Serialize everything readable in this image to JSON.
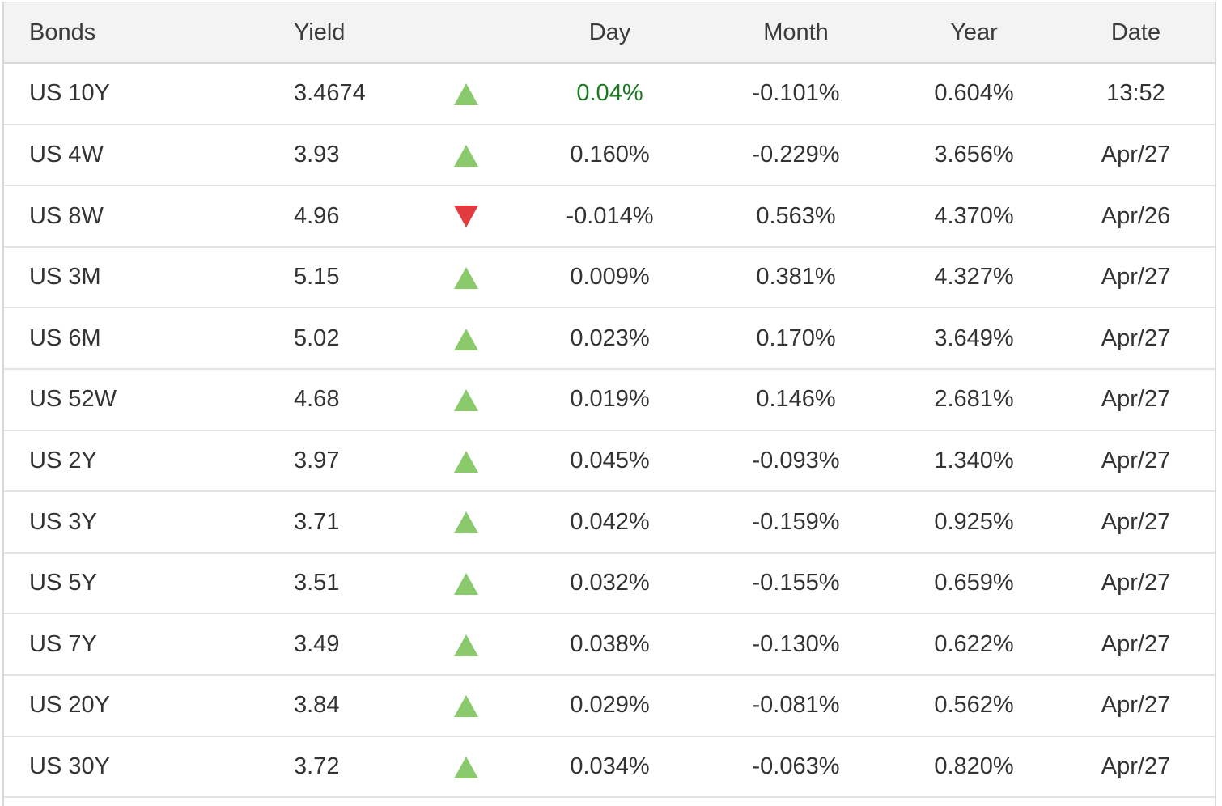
{
  "table": {
    "header": {
      "bonds": "Bonds",
      "yield": "Yield",
      "arrow": "",
      "day": "Day",
      "month": "Month",
      "year": "Year",
      "date": "Date"
    },
    "rows": [
      {
        "bond": "US 10Y",
        "yield": "3.4674",
        "direction": "up",
        "day": "0.04%",
        "day_green": true,
        "month": "-0.101%",
        "year": "0.604%",
        "date": "13:52"
      },
      {
        "bond": "US 4W",
        "yield": "3.93",
        "direction": "up",
        "day": "0.160%",
        "day_green": false,
        "month": "-0.229%",
        "year": "3.656%",
        "date": "Apr/27"
      },
      {
        "bond": "US 8W",
        "yield": "4.96",
        "direction": "down",
        "day": "-0.014%",
        "day_green": false,
        "month": "0.563%",
        "year": "4.370%",
        "date": "Apr/26"
      },
      {
        "bond": "US 3M",
        "yield": "5.15",
        "direction": "up",
        "day": "0.009%",
        "day_green": false,
        "month": "0.381%",
        "year": "4.327%",
        "date": "Apr/27"
      },
      {
        "bond": "US 6M",
        "yield": "5.02",
        "direction": "up",
        "day": "0.023%",
        "day_green": false,
        "month": "0.170%",
        "year": "3.649%",
        "date": "Apr/27"
      },
      {
        "bond": "US 52W",
        "yield": "4.68",
        "direction": "up",
        "day": "0.019%",
        "day_green": false,
        "month": "0.146%",
        "year": "2.681%",
        "date": "Apr/27"
      },
      {
        "bond": "US 2Y",
        "yield": "3.97",
        "direction": "up",
        "day": "0.045%",
        "day_green": false,
        "month": "-0.093%",
        "year": "1.340%",
        "date": "Apr/27"
      },
      {
        "bond": "US 3Y",
        "yield": "3.71",
        "direction": "up",
        "day": "0.042%",
        "day_green": false,
        "month": "-0.159%",
        "year": "0.925%",
        "date": "Apr/27"
      },
      {
        "bond": "US 5Y",
        "yield": "3.51",
        "direction": "up",
        "day": "0.032%",
        "day_green": false,
        "month": "-0.155%",
        "year": "0.659%",
        "date": "Apr/27"
      },
      {
        "bond": "US 7Y",
        "yield": "3.49",
        "direction": "up",
        "day": "0.038%",
        "day_green": false,
        "month": "-0.130%",
        "year": "0.622%",
        "date": "Apr/27"
      },
      {
        "bond": "US 20Y",
        "yield": "3.84",
        "direction": "up",
        "day": "0.029%",
        "day_green": false,
        "month": "-0.081%",
        "year": "0.562%",
        "date": "Apr/27"
      },
      {
        "bond": "US 30Y",
        "yield": "3.72",
        "direction": "up",
        "day": "0.034%",
        "day_green": false,
        "month": "-0.063%",
        "year": "0.820%",
        "date": "Apr/27"
      }
    ]
  },
  "colors": {
    "up": "#8bc96d",
    "down": "#e23b3e",
    "day_green_text": "#1a7a1f",
    "header_bg": "#f3f3f3",
    "border": "#d9d9d9",
    "border_soft": "#e2e2e2",
    "text": "#333333"
  },
  "icons": {
    "up": "up-triangle-icon",
    "down": "down-triangle-icon"
  }
}
